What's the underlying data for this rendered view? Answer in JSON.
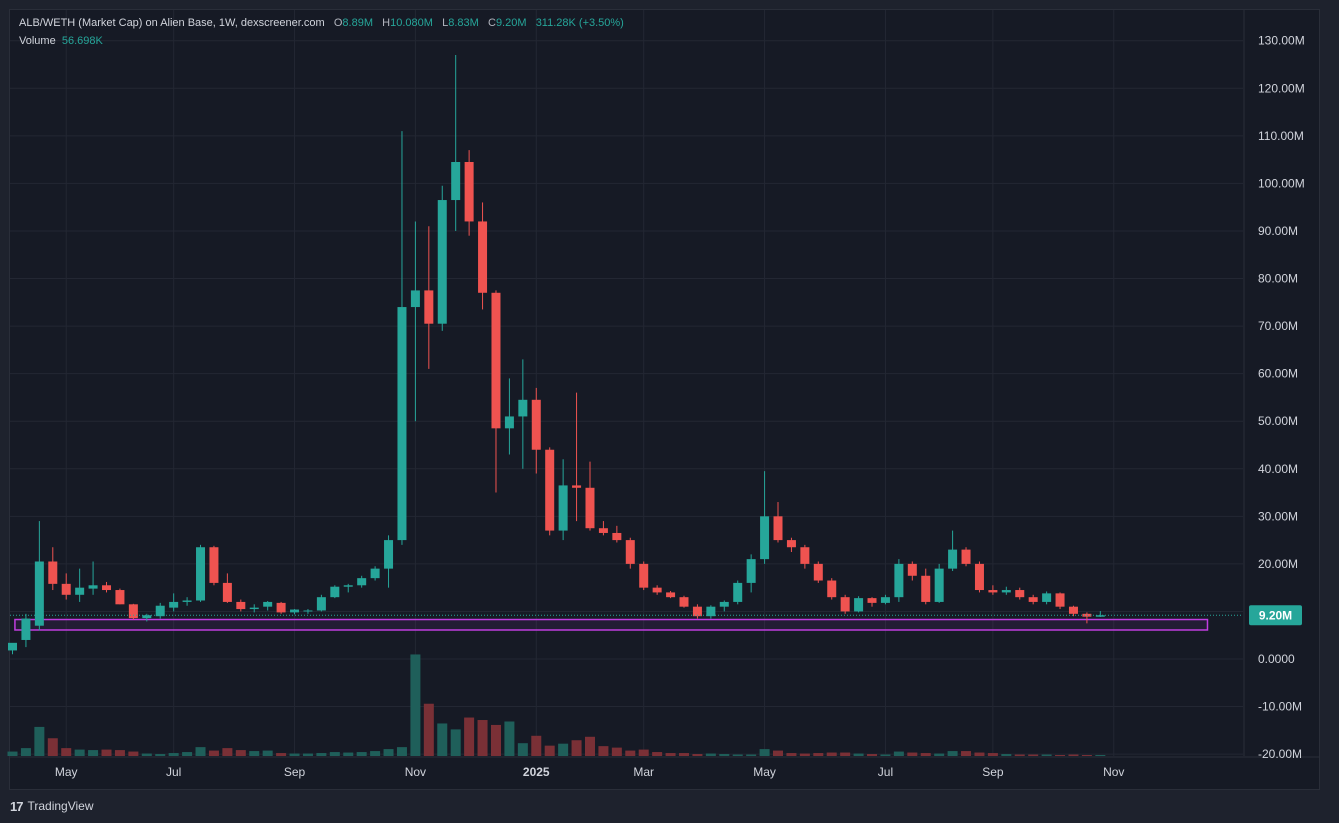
{
  "legend": {
    "title": "ALB/WETH (Market Cap) on Alien Base, 1W, dexscreener.com",
    "open_key": "O",
    "open": "8.89M",
    "high_key": "H",
    "high": "10.080M",
    "low_key": "L",
    "low": "8.83M",
    "close_key": "C",
    "close": "9.20M",
    "change": "311.28K (+3.50%)",
    "volume_label": "Volume",
    "volume": "56.698K"
  },
  "price_tag": "9.20M",
  "footer": {
    "brand": "TradingView",
    "logo": "tradingview-logo-icon"
  },
  "colors": {
    "up": "#26a69a",
    "down": "#ef5350",
    "vol_up": "#1f5f5a",
    "vol_down": "#7a3036",
    "zone": "#c03ee0",
    "background": "#161a25"
  },
  "chart_data": {
    "type": "candlestick",
    "title": "ALB/WETH (Market Cap) on Alien Base, 1W, dexscreener.com",
    "y_unit": "M",
    "ylim": [
      -20,
      130
    ],
    "y_ticks": [
      {
        "value": 130,
        "label": "130.00M"
      },
      {
        "value": 120,
        "label": "120.00M"
      },
      {
        "value": 110,
        "label": "110.00M"
      },
      {
        "value": 100,
        "label": "100.00M"
      },
      {
        "value": 90,
        "label": "90.00M"
      },
      {
        "value": 80,
        "label": "80.00M"
      },
      {
        "value": 70,
        "label": "70.00M"
      },
      {
        "value": 60,
        "label": "60.00M"
      },
      {
        "value": 50,
        "label": "50.00M"
      },
      {
        "value": 40,
        "label": "40.00M"
      },
      {
        "value": 30,
        "label": "30.00M"
      },
      {
        "value": 20,
        "label": "20.00M"
      },
      {
        "value": 10,
        "label": ""
      },
      {
        "value": 0,
        "label": "0.0000"
      },
      {
        "value": -10,
        "label": "-10.00M"
      },
      {
        "value": -20,
        "label": "-20.00M"
      }
    ],
    "x_ticks": [
      {
        "index": 4,
        "label": "May"
      },
      {
        "index": 12,
        "label": "Jul"
      },
      {
        "index": 21,
        "label": "Sep"
      },
      {
        "index": 30,
        "label": "Nov"
      },
      {
        "index": 39,
        "label": "2025"
      },
      {
        "index": 47,
        "label": "Mar"
      },
      {
        "index": 56,
        "label": "May"
      },
      {
        "index": 65,
        "label": "Jul"
      },
      {
        "index": 73,
        "label": "Sep"
      },
      {
        "index": 82,
        "label": "Nov"
      }
    ],
    "n_slots": 89,
    "candles": [
      {
        "o": 1.8,
        "h": 3.0,
        "l": 1.0,
        "c": 3.4
      },
      {
        "o": 4.0,
        "h": 9.5,
        "l": 2.5,
        "c": 8.5
      },
      {
        "o": 7.0,
        "h": 29.0,
        "l": 6.0,
        "c": 20.5
      },
      {
        "o": 20.5,
        "h": 23.5,
        "l": 14.5,
        "c": 15.8
      },
      {
        "o": 15.8,
        "h": 18.0,
        "l": 12.5,
        "c": 13.5
      },
      {
        "o": 13.5,
        "h": 19.0,
        "l": 12.0,
        "c": 15.0
      },
      {
        "o": 14.8,
        "h": 20.5,
        "l": 13.5,
        "c": 15.5
      },
      {
        "o": 15.5,
        "h": 16.2,
        "l": 14.0,
        "c": 14.5
      },
      {
        "o": 14.5,
        "h": 14.8,
        "l": 11.5,
        "c": 11.5
      },
      {
        "o": 11.5,
        "h": 11.6,
        "l": 8.3,
        "c": 8.6
      },
      {
        "o": 8.6,
        "h": 9.5,
        "l": 7.9,
        "c": 9.2
      },
      {
        "o": 9.0,
        "h": 11.8,
        "l": 8.5,
        "c": 11.2
      },
      {
        "o": 10.8,
        "h": 13.8,
        "l": 10.0,
        "c": 12.0
      },
      {
        "o": 12.0,
        "h": 13.0,
        "l": 11.2,
        "c": 12.3
      },
      {
        "o": 12.3,
        "h": 24.0,
        "l": 12.0,
        "c": 23.5
      },
      {
        "o": 23.5,
        "h": 23.8,
        "l": 15.5,
        "c": 16.0
      },
      {
        "o": 16.0,
        "h": 18.0,
        "l": 11.8,
        "c": 12.0
      },
      {
        "o": 12.0,
        "h": 12.5,
        "l": 10.0,
        "c": 10.5
      },
      {
        "o": 10.5,
        "h": 11.5,
        "l": 9.8,
        "c": 10.8
      },
      {
        "o": 11.0,
        "h": 12.2,
        "l": 10.2,
        "c": 12.0
      },
      {
        "o": 11.8,
        "h": 12.0,
        "l": 9.5,
        "c": 9.8
      },
      {
        "o": 9.8,
        "h": 10.5,
        "l": 9.4,
        "c": 10.4
      },
      {
        "o": 10.0,
        "h": 10.5,
        "l": 9.5,
        "c": 10.2
      },
      {
        "o": 10.2,
        "h": 13.5,
        "l": 10.0,
        "c": 13.0
      },
      {
        "o": 13.0,
        "h": 15.5,
        "l": 12.8,
        "c": 15.2
      },
      {
        "o": 15.2,
        "h": 15.8,
        "l": 14.0,
        "c": 15.5
      },
      {
        "o": 15.5,
        "h": 17.5,
        "l": 15.0,
        "c": 17.0
      },
      {
        "o": 17.0,
        "h": 19.5,
        "l": 16.5,
        "c": 19.0
      },
      {
        "o": 19.0,
        "h": 26.0,
        "l": 15.0,
        "c": 25.0
      },
      {
        "o": 25.0,
        "h": 111.0,
        "l": 24.0,
        "c": 74.0
      },
      {
        "o": 74.0,
        "h": 92.0,
        "l": 50.0,
        "c": 77.5
      },
      {
        "o": 77.5,
        "h": 91.0,
        "l": 61.0,
        "c": 70.5
      },
      {
        "o": 70.5,
        "h": 99.5,
        "l": 69.0,
        "c": 96.5
      },
      {
        "o": 96.5,
        "h": 127.0,
        "l": 90.0,
        "c": 104.5
      },
      {
        "o": 104.5,
        "h": 107.0,
        "l": 89.0,
        "c": 92.0
      },
      {
        "o": 92.0,
        "h": 96.0,
        "l": 73.5,
        "c": 77.0
      },
      {
        "o": 77.0,
        "h": 77.5,
        "l": 35.0,
        "c": 48.5
      },
      {
        "o": 48.5,
        "h": 59.0,
        "l": 43.0,
        "c": 51.0
      },
      {
        "o": 51.0,
        "h": 63.0,
        "l": 40.0,
        "c": 54.5
      },
      {
        "o": 54.5,
        "h": 57.0,
        "l": 39.0,
        "c": 44.0
      },
      {
        "o": 44.0,
        "h": 44.5,
        "l": 26.0,
        "c": 27.0
      },
      {
        "o": 27.0,
        "h": 42.0,
        "l": 25.0,
        "c": 36.5
      },
      {
        "o": 36.5,
        "h": 56.0,
        "l": 29.0,
        "c": 36.0
      },
      {
        "o": 36.0,
        "h": 41.5,
        "l": 27.0,
        "c": 27.5
      },
      {
        "o": 27.5,
        "h": 29.0,
        "l": 26.0,
        "c": 26.5
      },
      {
        "o": 26.5,
        "h": 28.0,
        "l": 24.5,
        "c": 25.0
      },
      {
        "o": 25.0,
        "h": 25.5,
        "l": 19.0,
        "c": 20.0
      },
      {
        "o": 20.0,
        "h": 20.5,
        "l": 14.5,
        "c": 15.0
      },
      {
        "o": 15.0,
        "h": 15.5,
        "l": 13.5,
        "c": 14.0
      },
      {
        "o": 14.0,
        "h": 14.3,
        "l": 12.8,
        "c": 13.0
      },
      {
        "o": 13.0,
        "h": 13.3,
        "l": 10.8,
        "c": 11.0
      },
      {
        "o": 11.0,
        "h": 11.5,
        "l": 8.5,
        "c": 9.0
      },
      {
        "o": 9.0,
        "h": 11.3,
        "l": 8.5,
        "c": 11.0
      },
      {
        "o": 11.0,
        "h": 12.3,
        "l": 10.0,
        "c": 12.0
      },
      {
        "o": 12.0,
        "h": 16.5,
        "l": 11.5,
        "c": 16.0
      },
      {
        "o": 16.0,
        "h": 22.0,
        "l": 14.0,
        "c": 21.0
      },
      {
        "o": 21.0,
        "h": 39.5,
        "l": 20.0,
        "c": 30.0
      },
      {
        "o": 30.0,
        "h": 33.0,
        "l": 24.5,
        "c": 25.0
      },
      {
        "o": 25.0,
        "h": 25.5,
        "l": 22.5,
        "c": 23.5
      },
      {
        "o": 23.5,
        "h": 24.0,
        "l": 19.0,
        "c": 20.0
      },
      {
        "o": 20.0,
        "h": 20.5,
        "l": 16.0,
        "c": 16.5
      },
      {
        "o": 16.5,
        "h": 17.0,
        "l": 12.5,
        "c": 13.0
      },
      {
        "o": 13.0,
        "h": 13.5,
        "l": 9.5,
        "c": 10.0
      },
      {
        "o": 10.0,
        "h": 13.2,
        "l": 9.8,
        "c": 12.8
      },
      {
        "o": 12.8,
        "h": 13.0,
        "l": 11.0,
        "c": 11.8
      },
      {
        "o": 11.8,
        "h": 13.5,
        "l": 11.5,
        "c": 13.0
      },
      {
        "o": 13.0,
        "h": 21.0,
        "l": 12.0,
        "c": 20.0
      },
      {
        "o": 20.0,
        "h": 20.5,
        "l": 16.5,
        "c": 17.5
      },
      {
        "o": 17.5,
        "h": 19.0,
        "l": 11.5,
        "c": 12.0
      },
      {
        "o": 12.0,
        "h": 20.0,
        "l": 11.8,
        "c": 19.0
      },
      {
        "o": 19.0,
        "h": 27.0,
        "l": 18.5,
        "c": 23.0
      },
      {
        "o": 23.0,
        "h": 23.5,
        "l": 19.5,
        "c": 20.0
      },
      {
        "o": 20.0,
        "h": 20.5,
        "l": 14.0,
        "c": 14.5
      },
      {
        "o": 14.5,
        "h": 15.5,
        "l": 13.5,
        "c": 14.0
      },
      {
        "o": 14.0,
        "h": 15.2,
        "l": 13.5,
        "c": 14.5
      },
      {
        "o": 14.5,
        "h": 15.0,
        "l": 12.5,
        "c": 13.0
      },
      {
        "o": 13.0,
        "h": 13.5,
        "l": 11.5,
        "c": 12.0
      },
      {
        "o": 12.0,
        "h": 14.2,
        "l": 11.5,
        "c": 13.8
      },
      {
        "o": 13.8,
        "h": 14.0,
        "l": 10.5,
        "c": 11.0
      },
      {
        "o": 11.0,
        "h": 11.2,
        "l": 9.0,
        "c": 9.5
      },
      {
        "o": 9.5,
        "h": 9.8,
        "l": 7.5,
        "c": 8.9
      },
      {
        "o": 8.89,
        "h": 10.08,
        "l": 8.83,
        "c": 9.2
      }
    ],
    "volumes": [
      0.9,
      1.6,
      5.9,
      3.6,
      1.6,
      1.3,
      1.2,
      1.3,
      1.2,
      0.9,
      0.5,
      0.4,
      0.6,
      0.8,
      1.8,
      1.1,
      1.6,
      1.2,
      1.0,
      1.1,
      0.6,
      0.5,
      0.5,
      0.6,
      0.8,
      0.7,
      0.8,
      1.0,
      1.4,
      1.8,
      20.6,
      10.6,
      6.6,
      5.4,
      7.8,
      7.3,
      6.3,
      7.0,
      2.6,
      4.1,
      2.1,
      2.5,
      3.2,
      3.9,
      2.0,
      1.7,
      1.1,
      1.3,
      0.8,
      0.6,
      0.6,
      0.4,
      0.5,
      0.4,
      0.3,
      0.3,
      1.4,
      1.1,
      0.6,
      0.5,
      0.6,
      0.7,
      0.7,
      0.5,
      0.4,
      0.3,
      0.9,
      0.7,
      0.6,
      0.5,
      1.0,
      1.0,
      0.7,
      0.6,
      0.4,
      0.3,
      0.3,
      0.3,
      0.2,
      0.3,
      0.2,
      0.2
    ],
    "zone": {
      "x_start": 1,
      "x_end": 86,
      "y_low": 6.1,
      "y_high": 8.3
    },
    "last_price": 9.2
  }
}
